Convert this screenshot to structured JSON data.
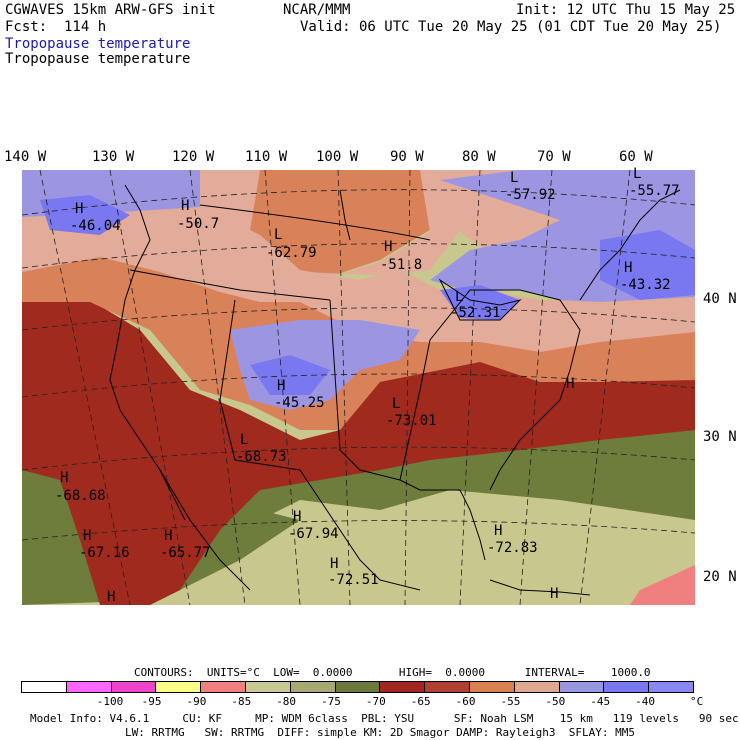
{
  "header": {
    "model_title": "CGWAVES 15km ARW-GFS init",
    "forecast": "Fcst:  114 h",
    "field_title_1": "Tropopause temperature",
    "field_title_2": "Tropopause temperature",
    "center": "NCAR/MMM",
    "init": "Init: 12 UTC Thu 15 May 25",
    "valid": "Valid: 06 UTC Tue 20 May 25 (01 CDT Tue 20 May 25)"
  },
  "longitudes": [
    "140 W",
    "130 W",
    "120 W",
    "110 W",
    "100 W",
    "90 W",
    "80 W",
    "70 W",
    "60 W"
  ],
  "latitudes": [
    "40 N",
    "30 N",
    "20 N"
  ],
  "extrema": [
    {
      "type": "H",
      "value": "-46.04"
    },
    {
      "type": "H",
      "value": "-50.7"
    },
    {
      "type": "L",
      "value": "-62.79"
    },
    {
      "type": "H",
      "value": "-51.8"
    },
    {
      "type": "L",
      "value": "-57.92"
    },
    {
      "type": "L",
      "value": "-55.77"
    },
    {
      "type": "H",
      "value": "-43.32"
    },
    {
      "type": "L",
      "value": "-52.31"
    },
    {
      "type": "H",
      "value": "-45.25"
    },
    {
      "type": "L",
      "value": "-73.01"
    },
    {
      "type": "L",
      "value": "-68.73"
    },
    {
      "type": "H",
      "value": "-68.68"
    },
    {
      "type": "H",
      "value": "-67.16"
    },
    {
      "type": "H",
      "value": "-65.77"
    },
    {
      "type": "H",
      "value": "-67.94"
    },
    {
      "type": "H",
      "value": "-72.51"
    },
    {
      "type": "H",
      "value": "-72.83"
    },
    {
      "type": "H",
      "value": ""
    },
    {
      "type": "H",
      "value": ""
    },
    {
      "type": "H",
      "value": ""
    }
  ],
  "contours_line": "CONTOURS:  UNITS=°C  LOW=  0.0000       HIGH=  0.0000      INTERVAL=    1000.0",
  "colorbar": {
    "colors": [
      "#ffffff",
      "#ff66ff",
      "#ee44cc",
      "#ffff88",
      "#f08080",
      "#c8c890",
      "#a8a870",
      "#6b7a3a",
      "#a0281e",
      "#b04030",
      "#d98050",
      "#e0a890",
      "#9898e0",
      "#7878f0",
      "#8888f0"
    ],
    "labels": [
      "-100",
      "-95",
      "-90",
      "-85",
      "-80",
      "-75",
      "-70",
      "-65",
      "-60",
      "-55",
      "-50",
      "-45",
      "-40"
    ],
    "unit": "°C"
  },
  "footer": {
    "line1": "Model Info: V4.6.1     CU: KF     MP: WDM 6class  PBL: YSU      SF: Noah LSM    15 km   119 levels   90 sec",
    "line2": "LW: RRTMG   SW: RRTMG  DIFF: simple KM: 2D Smagor DAMP: Rayleigh3  SFLAY: MM5"
  },
  "field_colors": {
    "lavender": "#9c96e2",
    "blue": "#7a78f0",
    "pink": "#e2ab9a",
    "orange": "#d9825a",
    "red": "#a02a1e",
    "olive": "#6e7d3c",
    "khaki": "#c8c88e",
    "salmon": "#f08080"
  }
}
